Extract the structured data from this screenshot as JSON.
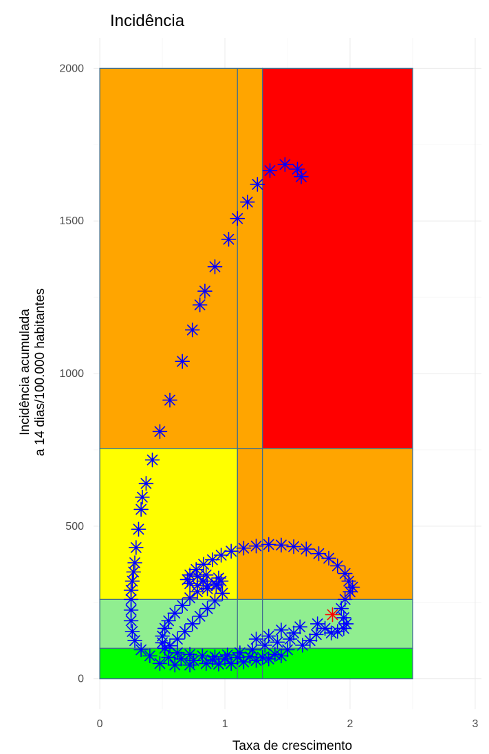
{
  "chart_data": {
    "type": "scatter",
    "title": "Incidência",
    "xlabel": "Taxa de crescimento",
    "ylabel_lines": [
      "Incidência acumulada",
      "a 14 dias/100.000 habitantes"
    ],
    "xlim": [
      -0.05,
      3.05
    ],
    "ylim": [
      -100,
      2100
    ],
    "x_ticks": [
      0,
      1,
      2,
      3
    ],
    "x_tick_labels": [
      "0",
      "1",
      "2",
      "3"
    ],
    "y_ticks": [
      0,
      500,
      1000,
      1500,
      2000
    ],
    "y_tick_labels": [
      "0",
      "500",
      "1000",
      "1500",
      "2000"
    ],
    "grid": true,
    "marker": "asterisk",
    "colors": {
      "point": "#0000ff",
      "last_point": "#ff0000"
    },
    "zones": [
      {
        "x0": 0,
        "x1": 2.5,
        "y0": 0,
        "y1": 100,
        "color": "#00ff00"
      },
      {
        "x0": 0,
        "x1": 2.5,
        "y0": 100,
        "y1": 260,
        "color": "#90ee90"
      },
      {
        "x0": 0,
        "x1": 1.1,
        "y0": 260,
        "y1": 755,
        "color": "#ffff00"
      },
      {
        "x0": 1.1,
        "x1": 2.5,
        "y0": 260,
        "y1": 755,
        "color": "#ffa500"
      },
      {
        "x0": 0,
        "x1": 1.3,
        "y0": 755,
        "y1": 2000,
        "color": "#ffa500"
      },
      {
        "x0": 1.3,
        "x1": 2.5,
        "y0": 755,
        "y1": 2000,
        "color": "#ff0000"
      }
    ],
    "vertical_lines": [
      1.1,
      1.3
    ],
    "series": [
      {
        "points": [
          [
            0.48,
            50
          ],
          [
            0.6,
            45
          ],
          [
            0.72,
            45
          ],
          [
            0.85,
            50
          ],
          [
            0.95,
            48
          ],
          [
            1.05,
            50
          ],
          [
            1.15,
            55
          ],
          [
            1.25,
            60
          ],
          [
            1.35,
            65
          ],
          [
            1.45,
            75
          ],
          [
            0.55,
            70
          ],
          [
            0.65,
            65
          ],
          [
            0.75,
            60
          ],
          [
            0.9,
            62
          ],
          [
            1.0,
            65
          ],
          [
            1.1,
            70
          ],
          [
            1.2,
            72
          ],
          [
            1.3,
            70
          ],
          [
            1.4,
            80
          ],
          [
            1.5,
            95
          ],
          [
            0.62,
            85
          ],
          [
            0.72,
            80
          ],
          [
            0.82,
            75
          ],
          [
            0.92,
            72
          ],
          [
            1.02,
            78
          ],
          [
            1.12,
            85
          ],
          [
            1.22,
            95
          ],
          [
            1.32,
            110
          ],
          [
            1.42,
            120
          ],
          [
            1.52,
            130
          ],
          [
            1.55,
            150
          ],
          [
            1.6,
            170
          ],
          [
            1.25,
            130
          ],
          [
            1.35,
            140
          ],
          [
            1.45,
            160
          ],
          [
            1.62,
            110
          ],
          [
            1.68,
            125
          ],
          [
            1.73,
            145
          ],
          [
            1.74,
            180
          ],
          [
            1.8,
            165
          ],
          [
            1.85,
            150
          ],
          [
            1.9,
            155
          ],
          [
            1.95,
            165
          ],
          [
            1.97,
            180
          ],
          [
            1.95,
            200
          ],
          [
            1.93,
            230
          ],
          [
            1.96,
            260
          ],
          [
            2.0,
            285
          ],
          [
            2.02,
            300
          ],
          [
            1.99,
            320
          ],
          [
            1.96,
            345
          ],
          [
            1.9,
            370
          ],
          [
            1.83,
            395
          ],
          [
            1.75,
            410
          ],
          [
            1.65,
            425
          ],
          [
            1.55,
            433
          ],
          [
            1.45,
            438
          ],
          [
            1.35,
            440
          ],
          [
            1.25,
            435
          ],
          [
            1.15,
            428
          ],
          [
            1.05,
            418
          ],
          [
            0.97,
            405
          ],
          [
            0.9,
            390
          ],
          [
            0.83,
            375
          ],
          [
            0.77,
            358
          ],
          [
            0.72,
            340
          ],
          [
            0.7,
            325
          ],
          [
            0.72,
            312
          ],
          [
            0.78,
            305
          ],
          [
            0.86,
            305
          ],
          [
            0.93,
            310
          ],
          [
            0.97,
            320
          ],
          [
            0.93,
            305
          ],
          [
            0.86,
            295
          ],
          [
            0.78,
            285
          ],
          [
            0.72,
            265
          ],
          [
            0.66,
            240
          ],
          [
            0.6,
            215
          ],
          [
            0.55,
            190
          ],
          [
            0.52,
            165
          ],
          [
            0.5,
            140
          ],
          [
            0.5,
            118
          ],
          [
            0.52,
            100
          ],
          [
            0.56,
            108
          ],
          [
            0.62,
            130
          ],
          [
            0.68,
            155
          ],
          [
            0.74,
            180
          ],
          [
            0.8,
            205
          ],
          [
            0.86,
            230
          ],
          [
            0.92,
            255
          ],
          [
            0.98,
            280
          ],
          [
            0.83,
            320
          ],
          [
            0.78,
            335
          ],
          [
            0.85,
            340
          ],
          [
            0.95,
            330
          ],
          [
            0.4,
            75
          ],
          [
            0.33,
            95
          ],
          [
            0.28,
            125
          ],
          [
            0.26,
            155
          ],
          [
            0.25,
            190
          ],
          [
            0.25,
            225
          ],
          [
            0.25,
            260
          ],
          [
            0.25,
            290
          ],
          [
            0.26,
            320
          ],
          [
            0.27,
            350
          ],
          [
            0.28,
            380
          ],
          [
            0.29,
            430
          ],
          [
            0.31,
            490
          ],
          [
            0.33,
            555
          ],
          [
            0.34,
            595
          ],
          [
            0.37,
            640
          ],
          [
            0.42,
            717
          ],
          [
            0.48,
            810
          ],
          [
            0.56,
            913
          ],
          [
            0.66,
            1040
          ],
          [
            0.74,
            1143
          ],
          [
            0.8,
            1225
          ],
          [
            0.84,
            1270
          ],
          [
            0.92,
            1350
          ],
          [
            1.03,
            1440
          ],
          [
            1.1,
            1508
          ],
          [
            1.18,
            1562
          ],
          [
            1.26,
            1620
          ],
          [
            1.36,
            1665
          ],
          [
            1.48,
            1685
          ],
          [
            1.58,
            1670
          ],
          [
            1.61,
            1645
          ]
        ]
      }
    ],
    "last_point": [
      1.86,
      210
    ]
  }
}
